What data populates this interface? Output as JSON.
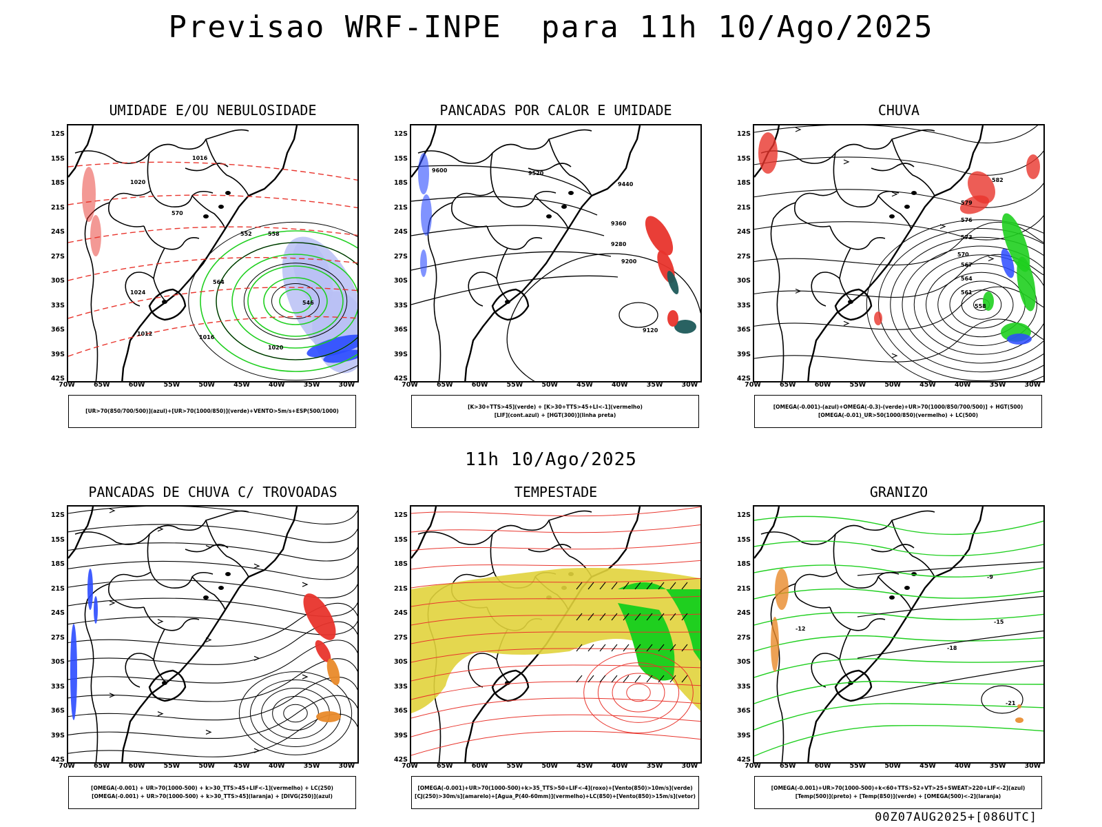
{
  "main_title": "Previsao WRF-INPE  para 11h 10/Ago/2025",
  "mid_title": "11h 10/Ago/2025",
  "footer": "00Z07AUG2025+[086UTC]",
  "lat_labels": [
    "12S",
    "15S",
    "18S",
    "21S",
    "24S",
    "27S",
    "30S",
    "33S",
    "36S",
    "39S",
    "42S"
  ],
  "lon_labels": [
    "70W",
    "65W",
    "60W",
    "55W",
    "50W",
    "45W",
    "40W",
    "35W",
    "30W"
  ],
  "panels": [
    {
      "title": "UMIDADE E/OU NEBULOSIDADE",
      "legend": [
        "[UR>70(850/700/500)](azul)+[UR>70(1000/850)](verde)+VENTO>5m/s+ESP(500/1000)"
      ],
      "contour_labels": [
        "1016",
        "1020",
        "1024",
        "1012",
        "1016",
        "1020",
        "570",
        "564",
        "558",
        "552",
        "546"
      ]
    },
    {
      "title": "PANCADAS POR CALOR E UMIDADE",
      "legend": [
        "[K>30+TTS>45](verde) + [K>30+TTS>45+LI<-1](vermelho)",
        "[LIF](cont.azul) + [HGT(300)](linha preta)"
      ],
      "contour_labels": [
        "9600",
        "9520",
        "9440",
        "9360",
        "9280",
        "9200",
        "9120"
      ]
    },
    {
      "title": "CHUVA",
      "legend": [
        "[OMEGA(-0.001)-(azul)+OMEGA(-0.3)-(verde)+UR>70(1000/850/700/500)] + HGT(500)",
        "[OMEGA(-0.01)_UR>50(1000/850)(vermelho) + LC(500)"
      ],
      "contour_labels": [
        "582",
        "579",
        "576",
        "573",
        "570",
        "567",
        "564",
        "561",
        "558"
      ]
    },
    {
      "title": "PANCADAS DE CHUVA C/ TROVOADAS",
      "legend": [
        "[OMEGA(-0.001) + UR>70(1000-500) + k>30_TTS>45+LIF<-1](vermelho) + LC(250)",
        "[OMEGA(-0.001) + UR>70(1000-500) + k>30_TTS>45](laranja) + [DIVG(250)](azul)"
      ],
      "contour_labels": []
    },
    {
      "title": "TEMPESTADE",
      "legend": [
        "[OMEGA(-0.001)+UR>70(1000-500)+k>35_TTS>50+LIF<-4](roxo)+[Vento(850)>10m/s](verde)",
        "[CJ(250)>30m/s](amarelo)+[Agua_P(40-60mm)](vermelho)+LC(850)+[Vento(850)>15m/s](vetor)"
      ],
      "contour_labels": []
    },
    {
      "title": "GRANIZO",
      "legend": [
        "[OMEGA(-0.001)+UR>70(1000-500)+k<60+TTS>52+VT>25+SWEAT>220+LIF<-2](azul)",
        "[Temp(500)](preto) + [Temp(850)](verde) + [OMEGA(500)<-2](laranja)"
      ],
      "contour_labels": [
        "-12",
        "-15",
        "-18",
        "-21",
        "-9"
      ]
    }
  ],
  "colors": {
    "red": "#e8342c",
    "green": "#1fcf1f",
    "blue": "#2b4bff",
    "lightblue": "#b9c0f5",
    "yellow": "#e1d33c",
    "orange": "#e98a2a",
    "teal": "#1e5a5a"
  }
}
